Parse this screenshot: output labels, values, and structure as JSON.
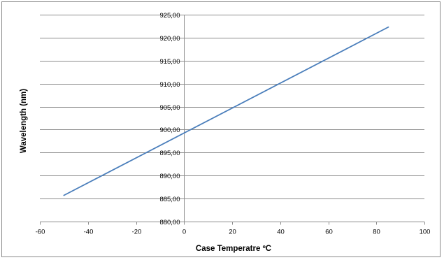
{
  "chart_data": {
    "type": "line",
    "title": "",
    "xlabel": "Case Temperatre ºC",
    "ylabel": "Wavelength (nm)",
    "xlim": [
      -60,
      100
    ],
    "ylim": [
      880,
      925
    ],
    "x_ticks": [
      -60,
      -40,
      -20,
      0,
      20,
      40,
      60,
      80,
      100
    ],
    "x_tick_labels": [
      "-60",
      "-40",
      "-20",
      "0",
      "20",
      "40",
      "60",
      "80",
      "100"
    ],
    "y_ticks": [
      880,
      885,
      890,
      895,
      900,
      905,
      910,
      915,
      920,
      925
    ],
    "y_tick_labels": [
      "880,00",
      "885,00",
      "890,00",
      "895,00",
      "900,00",
      "905,00",
      "910,00",
      "915,00",
      "920,00",
      "925,00"
    ],
    "grid": "horizontal",
    "legend": "none",
    "colors": {
      "line": "#4a7ebb",
      "grid": "#8c8c8c",
      "axis": "#8c8c8c",
      "frame": "#8a8a8a"
    },
    "series": [
      {
        "x": [
          -50,
          85
        ],
        "y": [
          885.7,
          922.3
        ]
      }
    ]
  }
}
